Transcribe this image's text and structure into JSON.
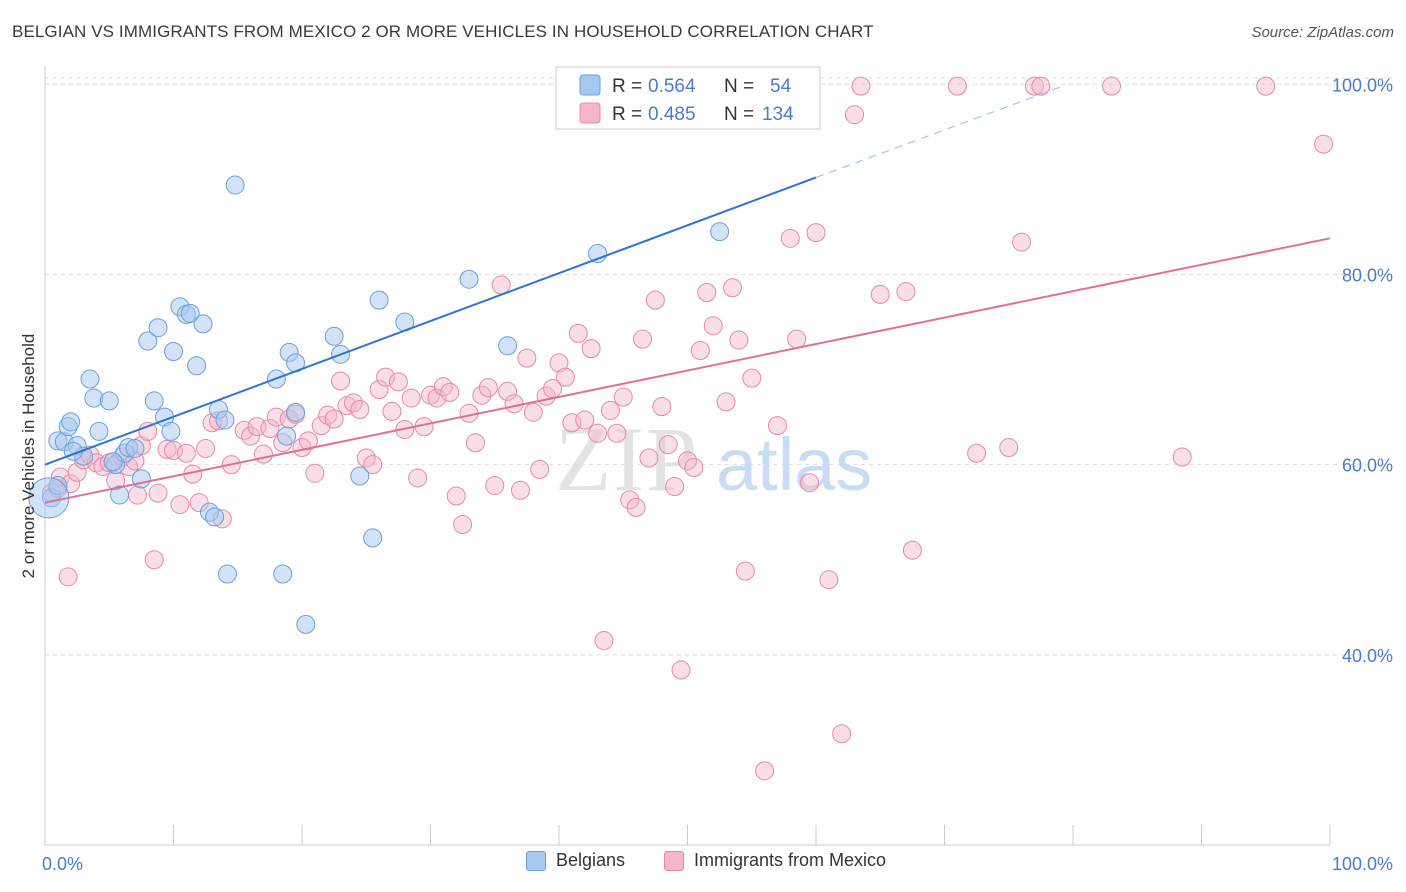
{
  "title": "BELGIAN VS IMMIGRANTS FROM MEXICO 2 OR MORE VEHICLES IN HOUSEHOLD CORRELATION CHART",
  "source": "Source: ZipAtlas.com",
  "watermark": {
    "zip": "ZIP",
    "atlas": "atlas"
  },
  "colors": {
    "blue_fill": "#a8c8f0",
    "blue_stroke": "#6c9fd9",
    "blue_line": "#2f74d0",
    "pink_fill": "#f5b6ca",
    "pink_stroke": "#e48aa8",
    "pink_line": "#e0709a",
    "axis_label": "#4a7cc9",
    "grid": "#dddddd"
  },
  "legend_box": {
    "rows": [
      {
        "r_label": "R = ",
        "r_value": "0.564",
        "n_label": "N = ",
        "n_value": "54",
        "series": "blue"
      },
      {
        "r_label": "R = ",
        "r_value": "0.485",
        "n_label": "N = ",
        "n_value": "134",
        "series": "pink"
      }
    ]
  },
  "chart_data": {
    "type": "scatter",
    "title": "BELGIAN VS IMMIGRANTS FROM MEXICO 2 OR MORE VEHICLES IN HOUSEHOLD CORRELATION CHART",
    "xlabel": "",
    "ylabel": "2 or more Vehicles in Household",
    "xlim": [
      0,
      100
    ],
    "ylim": [
      20,
      101.5
    ],
    "x_tick_labels": [
      {
        "value": 0,
        "label": "0.0%"
      },
      {
        "value": 100,
        "label": "100.0%"
      }
    ],
    "y_tick_labels": [
      {
        "value": 40,
        "label": "40.0%"
      },
      {
        "value": 60,
        "label": "60.0%"
      },
      {
        "value": 80,
        "label": "80.0%"
      },
      {
        "value": 100,
        "label": "100.0%"
      }
    ],
    "grid": true,
    "legend_position": "bottom",
    "series": [
      {
        "name": "Belgians",
        "color": "#a8c8f0",
        "trend": {
          "x0": 0,
          "y0": 60.0,
          "x1": 60,
          "y1": 90.2,
          "dashed_to_x": 79,
          "dashed_to_y": 99.7
        },
        "points": [
          [
            0.5,
            56.5
          ],
          [
            1.0,
            62.5
          ],
          [
            1.5,
            62.4
          ],
          [
            1.8,
            64
          ],
          [
            2.0,
            64.5
          ],
          [
            2.5,
            62
          ],
          [
            3.0,
            60.9
          ],
          [
            3.5,
            69
          ],
          [
            3.8,
            67
          ],
          [
            4.2,
            63.5
          ],
          [
            5.0,
            66.7
          ],
          [
            5.5,
            60
          ],
          [
            5.8,
            56.8
          ],
          [
            6.2,
            61.2
          ],
          [
            6.5,
            61.8
          ],
          [
            7.0,
            61.7
          ],
          [
            7.5,
            58.5
          ],
          [
            8.0,
            73
          ],
          [
            8.5,
            66.7
          ],
          [
            8.8,
            74.4
          ],
          [
            9.3,
            65
          ],
          [
            9.8,
            63.5
          ],
          [
            10.0,
            71.9
          ],
          [
            10.5,
            76.6
          ],
          [
            11.0,
            75.8
          ],
          [
            11.3,
            75.9
          ],
          [
            11.8,
            70.4
          ],
          [
            12.3,
            74.8
          ],
          [
            12.8,
            55
          ],
          [
            13.2,
            54.5
          ],
          [
            13.5,
            65.8
          ],
          [
            14.0,
            64.7
          ],
          [
            14.2,
            48.5
          ],
          [
            14.8,
            89.4
          ],
          [
            18.0,
            69
          ],
          [
            18.5,
            48.5
          ],
          [
            18.8,
            63
          ],
          [
            19.0,
            71.8
          ],
          [
            19.5,
            70.7
          ],
          [
            19.5,
            65.5
          ],
          [
            20.3,
            43.2
          ],
          [
            22.5,
            73.5
          ],
          [
            23.0,
            71.6
          ],
          [
            24.5,
            58.8
          ],
          [
            25.5,
            52.3
          ],
          [
            26.0,
            77.3
          ],
          [
            28.0,
            75
          ],
          [
            33.0,
            79.5
          ],
          [
            36.0,
            72.5
          ],
          [
            43.0,
            82.2
          ],
          [
            52.5,
            84.5
          ],
          [
            1.0,
            57.8
          ],
          [
            2.2,
            61.4
          ],
          [
            5.3,
            60.3
          ]
        ],
        "large_point": [
          0.3,
          56.5
        ]
      },
      {
        "name": "Immigrants from Mexico",
        "color": "#f5b6ca",
        "trend": {
          "x0": 0,
          "y0": 56.0,
          "x1": 100,
          "y1": 83.8
        },
        "points": [
          [
            0.5,
            57
          ],
          [
            1.0,
            57.5
          ],
          [
            1.2,
            58.7
          ],
          [
            1.8,
            48.2
          ],
          [
            2.0,
            58
          ],
          [
            2.5,
            59.2
          ],
          [
            3.0,
            60.5
          ],
          [
            3.5,
            61
          ],
          [
            4.0,
            60.2
          ],
          [
            4.5,
            59.8
          ],
          [
            5.0,
            60.2
          ],
          [
            5.5,
            58.3
          ],
          [
            6.0,
            60.8
          ],
          [
            6.5,
            59.8
          ],
          [
            7.0,
            60.4
          ],
          [
            7.2,
            56.8
          ],
          [
            7.5,
            62
          ],
          [
            8.0,
            63.5
          ],
          [
            8.5,
            50
          ],
          [
            8.8,
            57
          ],
          [
            9.5,
            61.6
          ],
          [
            10.0,
            61.5
          ],
          [
            10.5,
            55.8
          ],
          [
            11.0,
            61.2
          ],
          [
            11.5,
            59
          ],
          [
            12.0,
            56
          ],
          [
            12.5,
            61.7
          ],
          [
            13.0,
            64.4
          ],
          [
            13.5,
            64.6
          ],
          [
            13.8,
            54.3
          ],
          [
            14.5,
            60
          ],
          [
            15.5,
            63.6
          ],
          [
            16.0,
            63
          ],
          [
            16.5,
            64
          ],
          [
            17.0,
            61.1
          ],
          [
            17.5,
            63.8
          ],
          [
            18.0,
            65
          ],
          [
            18.5,
            62.3
          ],
          [
            19.0,
            64.8
          ],
          [
            19.5,
            65.3
          ],
          [
            20.0,
            61.8
          ],
          [
            20.5,
            62.5
          ],
          [
            21.0,
            59.1
          ],
          [
            21.5,
            64.1
          ],
          [
            22.0,
            65.2
          ],
          [
            22.5,
            64.8
          ],
          [
            23.0,
            68.8
          ],
          [
            23.5,
            66.2
          ],
          [
            24.0,
            66.5
          ],
          [
            24.5,
            65.8
          ],
          [
            25.0,
            60.7
          ],
          [
            25.5,
            60
          ],
          [
            26.0,
            67.9
          ],
          [
            26.5,
            69.2
          ],
          [
            27.0,
            65.6
          ],
          [
            27.5,
            68.7
          ],
          [
            28.0,
            63.7
          ],
          [
            28.5,
            67
          ],
          [
            29.0,
            58.6
          ],
          [
            29.5,
            64
          ],
          [
            30.0,
            67.3
          ],
          [
            30.5,
            67
          ],
          [
            31.0,
            68.2
          ],
          [
            31.5,
            67.6
          ],
          [
            32.0,
            56.7
          ],
          [
            32.5,
            53.7
          ],
          [
            33.0,
            65.4
          ],
          [
            33.5,
            62.3
          ],
          [
            34.0,
            67.3
          ],
          [
            34.5,
            68.1
          ],
          [
            35.0,
            57.8
          ],
          [
            35.5,
            78.9
          ],
          [
            36.0,
            67.7
          ],
          [
            36.5,
            66.4
          ],
          [
            37.0,
            57.3
          ],
          [
            37.5,
            71.2
          ],
          [
            38.0,
            65.5
          ],
          [
            38.5,
            59.5
          ],
          [
            39.0,
            67.2
          ],
          [
            39.5,
            68
          ],
          [
            40.0,
            70.7
          ],
          [
            40.5,
            69.2
          ],
          [
            41.0,
            64.4
          ],
          [
            41.5,
            73.8
          ],
          [
            42.0,
            64.7
          ],
          [
            42.5,
            72.2
          ],
          [
            43.0,
            63.3
          ],
          [
            43.5,
            41.5
          ],
          [
            44.0,
            65.7
          ],
          [
            44.5,
            63.3
          ],
          [
            45.0,
            67.1
          ],
          [
            45.5,
            56.3
          ],
          [
            46.0,
            55.5
          ],
          [
            46.5,
            73.2
          ],
          [
            47.0,
            60.7
          ],
          [
            47.5,
            77.3
          ],
          [
            48.0,
            66.1
          ],
          [
            48.5,
            62.1
          ],
          [
            49.0,
            57.7
          ],
          [
            49.5,
            38.4
          ],
          [
            50.0,
            60.4
          ],
          [
            50.5,
            59.7
          ],
          [
            51.0,
            72
          ],
          [
            51.5,
            78.1
          ],
          [
            52.0,
            74.6
          ],
          [
            53.0,
            66.6
          ],
          [
            53.5,
            78.6
          ],
          [
            54.0,
            73.1
          ],
          [
            54.5,
            48.8
          ],
          [
            55.0,
            69.1
          ],
          [
            55.5,
            100
          ],
          [
            56.0,
            27.8
          ],
          [
            57.0,
            64.1
          ],
          [
            58.0,
            83.8
          ],
          [
            58.5,
            73.2
          ],
          [
            59.5,
            58.1
          ],
          [
            60.0,
            84.4
          ],
          [
            61.0,
            47.9
          ],
          [
            62.0,
            31.7
          ],
          [
            63.0,
            96.8
          ],
          [
            63.5,
            99.8
          ],
          [
            65.0,
            77.9
          ],
          [
            67.0,
            78.2
          ],
          [
            67.5,
            51
          ],
          [
            71.0,
            99.8
          ],
          [
            72.5,
            61.2
          ],
          [
            75.0,
            61.8
          ],
          [
            76.0,
            83.4
          ],
          [
            77.0,
            99.8
          ],
          [
            77.5,
            99.8
          ],
          [
            83.0,
            99.8
          ],
          [
            88.5,
            60.8
          ],
          [
            95.0,
            99.8
          ],
          [
            99.5,
            93.7
          ]
        ]
      }
    ]
  }
}
